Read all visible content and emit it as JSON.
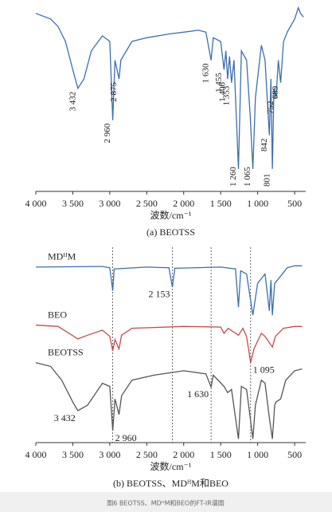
{
  "chart_data": [
    {
      "type": "line",
      "x_label": "波数/cm⁻¹",
      "caption": "(a) BEOTSS",
      "xlim": [
        4000,
        350
      ],
      "ylim": [
        0,
        100
      ],
      "xticks": [
        {
          "value": 4000,
          "label": "4 000"
        },
        {
          "value": 3500,
          "label": "3 500"
        },
        {
          "value": 3000,
          "label": "3 000"
        },
        {
          "value": 2500,
          "label": "2 500"
        },
        {
          "value": 2000,
          "label": "2 000"
        },
        {
          "value": 1500,
          "label": "1 500"
        },
        {
          "value": 1000,
          "label": "1 000"
        },
        500
      ],
      "series": [
        {
          "color": "#3b6fb0",
          "x": [
            4000,
            3800,
            3700,
            3600,
            3500,
            3432,
            3350,
            3250,
            3100,
            3000,
            2960,
            2930,
            2875,
            2850,
            2700,
            2500,
            2200,
            2000,
            1800,
            1700,
            1630,
            1600,
            1500,
            1455,
            1430,
            1406,
            1380,
            1353,
            1320,
            1260,
            1220,
            1150,
            1100,
            1065,
            1030,
            950,
            900,
            842,
            820,
            801,
            780,
            752,
            720,
            689,
            650,
            600,
            500,
            450,
            420,
            380
          ],
          "values": [
            95,
            92,
            88,
            80,
            65,
            55,
            60,
            75,
            83,
            80,
            38,
            70,
            60,
            70,
            80,
            82,
            84,
            85,
            86,
            85,
            70,
            82,
            80,
            65,
            75,
            60,
            72,
            58,
            70,
            12,
            75,
            70,
            40,
            12,
            50,
            78,
            70,
            30,
            60,
            12,
            55,
            50,
            70,
            58,
            80,
            85,
            92,
            98,
            95,
            93
          ]
        }
      ],
      "annotations": [
        {
          "x": 3432,
          "text": "3 432"
        },
        {
          "x": 2960,
          "text": "2 960"
        },
        {
          "x": 2875,
          "text": "2 875"
        },
        {
          "x": 1630,
          "text": "1 630"
        },
        {
          "x": 1455,
          "text": "1 455"
        },
        {
          "x": 1406,
          "text": "1 406"
        },
        {
          "x": 1353,
          "text": "1 353"
        },
        {
          "x": 1260,
          "text": "1 260"
        },
        {
          "x": 1065,
          "text": "1 065"
        },
        {
          "x": 842,
          "text": "842"
        },
        {
          "x": 801,
          "text": "801"
        },
        {
          "x": 752,
          "text": "752"
        },
        {
          "x": 689,
          "text": "689"
        }
      ]
    },
    {
      "type": "line",
      "x_label": "波数/cm⁻¹",
      "caption": "(b) BEOTSS、MDᴴM和BEO",
      "xlim": [
        4000,
        350
      ],
      "ylim": [
        0,
        300
      ],
      "xticks": [
        {
          "value": 4000,
          "label": "4 000"
        },
        {
          "value": 3500,
          "label": "3 500"
        },
        {
          "value": 3000,
          "label": "3 000"
        },
        {
          "value": 2500,
          "label": "2 500"
        },
        {
          "value": 2000,
          "label": "2 000"
        },
        {
          "value": 1500,
          "label": "1 500"
        },
        {
          "value": 1000,
          "label": "1 000"
        },
        500
      ],
      "vlines": [
        2960,
        2153,
        1630,
        1095
      ],
      "series": [
        {
          "name": "MDᴴM",
          "color": "#3b6fb0",
          "x": [
            4000,
            3100,
            3000,
            2960,
            2940,
            2500,
            2200,
            2153,
            2120,
            1500,
            1300,
            1260,
            1230,
            1150,
            1065,
            1000,
            900,
            842,
            820,
            801,
            770,
            700,
            600,
            500,
            400
          ],
          "values": [
            281,
            282,
            280,
            243,
            278,
            281,
            280,
            249,
            279,
            281,
            278,
            217,
            275,
            270,
            204,
            255,
            270,
            211,
            260,
            204,
            255,
            265,
            280,
            283,
            283
          ]
        },
        {
          "name": "BEO",
          "color": "#c84a4a",
          "x": [
            4000,
            3700,
            3550,
            3432,
            3300,
            3100,
            3000,
            2960,
            2930,
            2875,
            2840,
            2700,
            2000,
            1500,
            1455,
            1400,
            1260,
            1200,
            1150,
            1095,
            1050,
            950,
            900,
            842,
            801,
            760,
            650,
            500,
            400
          ],
          "values": [
            188,
            186,
            175,
            166,
            172,
            180,
            170,
            147,
            165,
            150,
            172,
            183,
            186,
            185,
            175,
            183,
            172,
            183,
            170,
            128,
            150,
            175,
            170,
            160,
            153,
            170,
            183,
            186,
            186
          ]
        },
        {
          "name": "BEOTSS",
          "color": "#555555",
          "x": [
            4000,
            3800,
            3650,
            3500,
            3432,
            3300,
            3100,
            3000,
            2960,
            2930,
            2875,
            2840,
            2700,
            2400,
            2000,
            1700,
            1630,
            1600,
            1455,
            1406,
            1353,
            1260,
            1220,
            1150,
            1100,
            1065,
            1030,
            950,
            900,
            842,
            801,
            770,
            752,
            689,
            620,
            500,
            400
          ],
          "values": [
            128,
            122,
            100,
            65,
            51,
            60,
            95,
            90,
            19,
            70,
            45,
            75,
            100,
            108,
            115,
            110,
            89,
            108,
            90,
            80,
            85,
            6,
            90,
            85,
            40,
            6,
            60,
            100,
            95,
            40,
            6,
            60,
            65,
            70,
            100,
            115,
            118
          ]
        }
      ],
      "annotations": [
        {
          "x": 3432,
          "text": "3 432",
          "series": "BEOTSS"
        },
        {
          "x": 2960,
          "text": "2 960",
          "series": "BEOTSS"
        },
        {
          "x": 2153,
          "text": "2 153",
          "series": "MDᴴM"
        },
        {
          "x": 1095,
          "text": "1 095",
          "series": "BEO"
        },
        {
          "x": 1630,
          "text": "1 630",
          "series": "BEOTSS"
        }
      ]
    }
  ],
  "figure_caption": "图6 BEOTSS、MDᴴM和BEO的FT-IR谱图"
}
